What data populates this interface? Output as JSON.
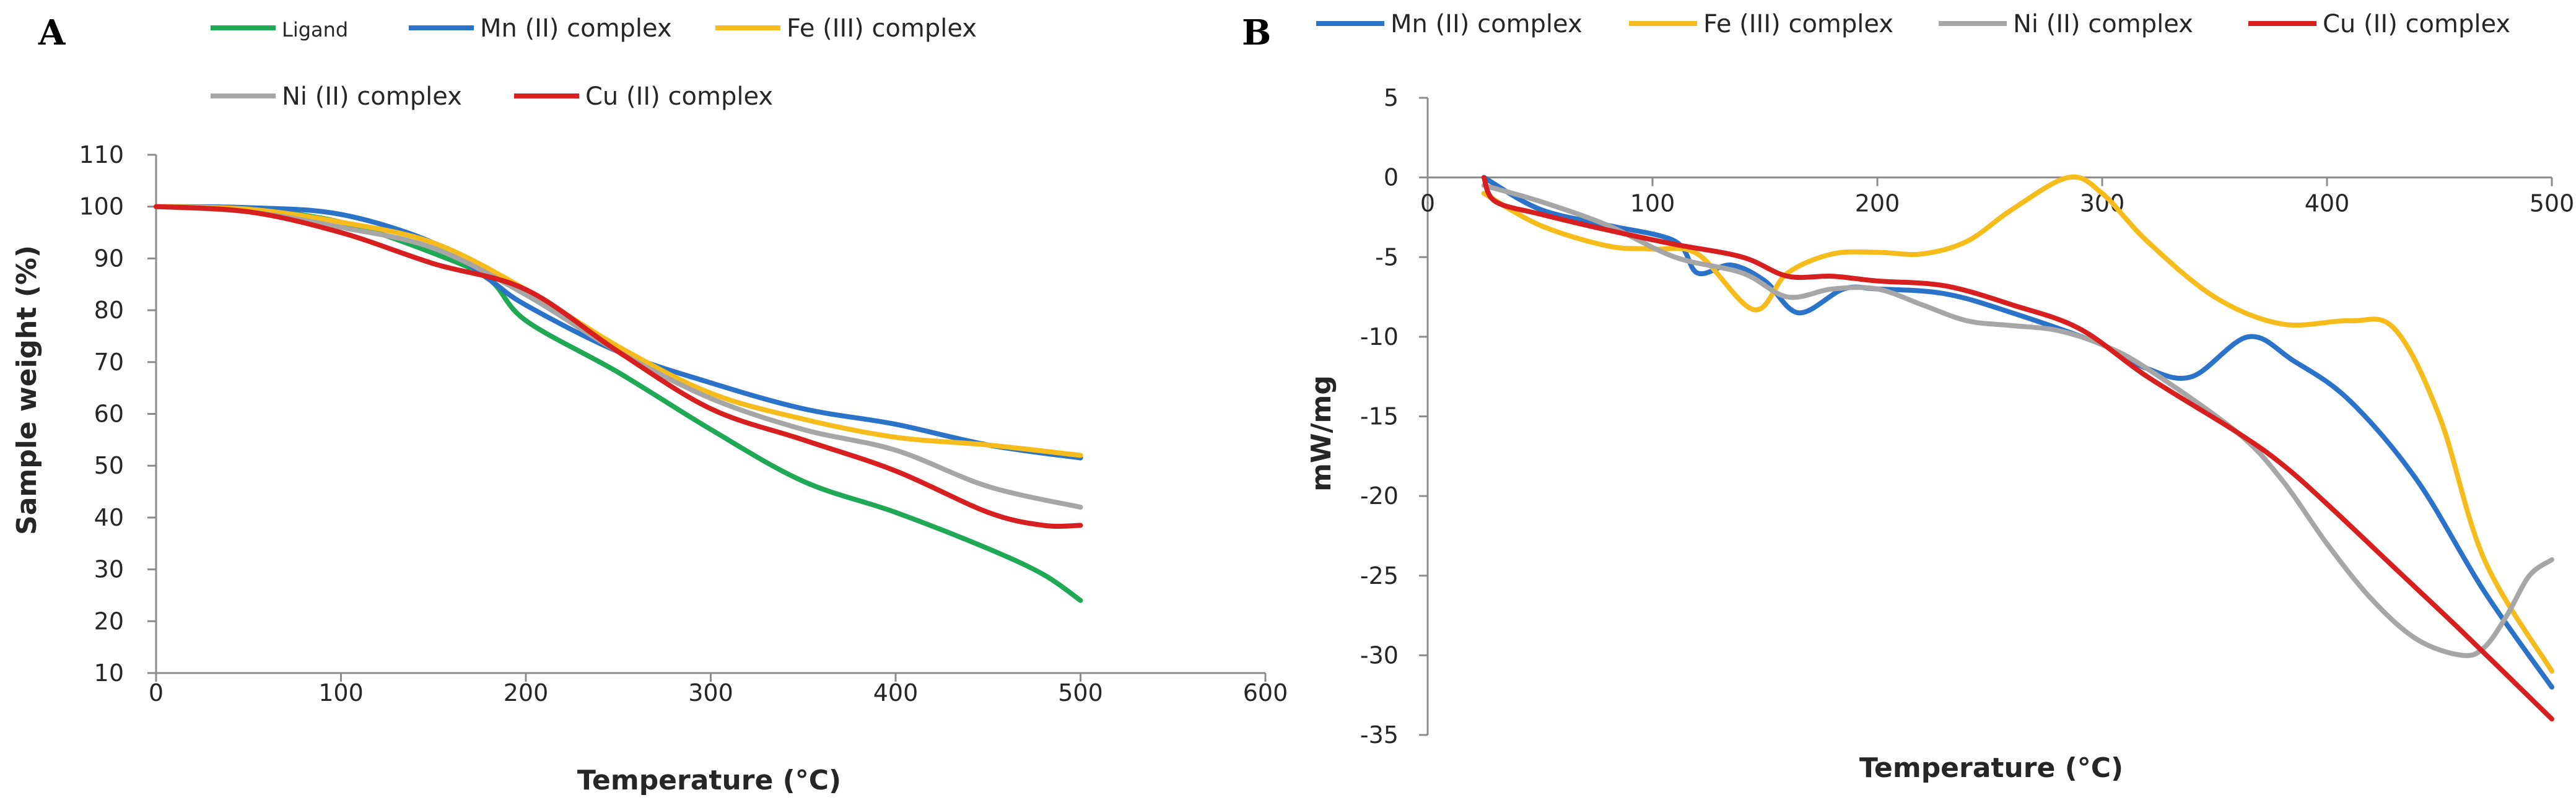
{
  "chart_data": [
    {
      "panel": "A",
      "type": "line",
      "title": "",
      "xlabel": "Temperature (°C)",
      "ylabel": "Sample weight (%)",
      "xlim": [
        0,
        600
      ],
      "ylim": [
        10,
        110
      ],
      "xticks": [
        0,
        100,
        200,
        300,
        400,
        500,
        600
      ],
      "yticks": [
        10,
        20,
        30,
        40,
        50,
        60,
        70,
        80,
        90,
        100,
        110
      ],
      "grid": false,
      "legend": "top",
      "series": [
        {
          "name": "Ligand",
          "color": "#1fa855",
          "x": [
            0,
            50,
            100,
            150,
            180,
            200,
            250,
            300,
            350,
            400,
            450,
            480,
            500
          ],
          "y": [
            100,
            99.5,
            97,
            91,
            86,
            78,
            68,
            57,
            47,
            41,
            34,
            29,
            24
          ]
        },
        {
          "name": "Mn (II) complex",
          "color": "#2b72c9",
          "x": [
            0,
            50,
            100,
            150,
            180,
            200,
            250,
            300,
            350,
            400,
            450,
            500
          ],
          "y": [
            100,
            99.8,
            98.5,
            93,
            86,
            81,
            72,
            66,
            61,
            58,
            54,
            51.5
          ]
        },
        {
          "name": "Fe (III) complex",
          "color": "#f5bc1b",
          "x": [
            0,
            50,
            100,
            150,
            200,
            250,
            300,
            350,
            400,
            450,
            500
          ],
          "y": [
            100,
            99.5,
            97,
            93,
            84,
            73,
            64,
            59,
            55.5,
            54,
            52
          ]
        },
        {
          "name": "Ni (II) complex",
          "color": "#a6a6a6",
          "x": [
            0,
            50,
            100,
            150,
            200,
            250,
            300,
            350,
            400,
            450,
            500
          ],
          "y": [
            100,
            99,
            96,
            92,
            83,
            72,
            63,
            57,
            53,
            46,
            42
          ]
        },
        {
          "name": "Cu (II) complex",
          "color": "#d81f1f",
          "x": [
            0,
            50,
            100,
            150,
            200,
            250,
            300,
            350,
            400,
            450,
            480,
            500
          ],
          "y": [
            100,
            99,
            95,
            89,
            84,
            72,
            61,
            55,
            49,
            41,
            38.5,
            38.5
          ]
        }
      ]
    },
    {
      "panel": "B",
      "type": "line",
      "title": "",
      "xlabel": "Temperature (°C)",
      "ylabel": "mW/mg",
      "xlim": [
        0,
        500
      ],
      "ylim": [
        -35,
        5
      ],
      "xticks": [
        0,
        100,
        200,
        300,
        400,
        500
      ],
      "yticks": [
        5,
        0,
        -5,
        -10,
        -15,
        -20,
        -25,
        -30,
        -35
      ],
      "grid": false,
      "legend": "top",
      "series": [
        {
          "name": "Mn (II) complex",
          "color": "#2b72c9",
          "x": [
            25,
            50,
            80,
            110,
            120,
            135,
            150,
            165,
            185,
            200,
            230,
            260,
            300,
            320,
            340,
            365,
            385,
            410,
            440,
            470,
            500
          ],
          "y": [
            0,
            -2,
            -3,
            -4,
            -6,
            -5.5,
            -6.5,
            -8.5,
            -7,
            -7,
            -7.3,
            -8.5,
            -10.5,
            -12,
            -12.5,
            -10,
            -11.5,
            -14,
            -19,
            -26,
            -32
          ]
        },
        {
          "name": "Fe (III) complex",
          "color": "#f5bc1b",
          "x": [
            25,
            50,
            80,
            100,
            120,
            145,
            160,
            180,
            200,
            220,
            240,
            260,
            285,
            300,
            320,
            350,
            380,
            410,
            430,
            450,
            470,
            500
          ],
          "y": [
            -1,
            -3,
            -4.3,
            -4.5,
            -4.8,
            -8.3,
            -6,
            -4.8,
            -4.7,
            -4.8,
            -4,
            -2,
            0,
            -1,
            -4,
            -7.5,
            -9.2,
            -9,
            -9.5,
            -15,
            -24,
            -31
          ]
        },
        {
          "name": "Ni (II) complex",
          "color": "#a6a6a6",
          "x": [
            25,
            50,
            80,
            110,
            140,
            160,
            180,
            200,
            220,
            240,
            260,
            280,
            300,
            320,
            360,
            380,
            400,
            420,
            440,
            460,
            470,
            480,
            490,
            500
          ],
          "y": [
            -0.5,
            -1.5,
            -3,
            -5,
            -6,
            -7.5,
            -7,
            -7,
            -8,
            -9,
            -9.3,
            -9.6,
            -10.5,
            -12,
            -16,
            -19,
            -23,
            -26.5,
            -29,
            -30,
            -29.5,
            -27.5,
            -25,
            -24
          ]
        },
        {
          "name": "Cu (II) complex",
          "color": "#d81f1f",
          "x": [
            25,
            30,
            50,
            80,
            110,
            140,
            160,
            180,
            200,
            230,
            260,
            290,
            320,
            360,
            380,
            400,
            430,
            460,
            500
          ],
          "y": [
            0,
            -1.5,
            -2.3,
            -3.3,
            -4.2,
            -5,
            -6.2,
            -6.2,
            -6.5,
            -6.8,
            -8,
            -9.5,
            -12.5,
            -16,
            -18,
            -20.5,
            -24.5,
            -28.5,
            -34
          ]
        }
      ]
    }
  ]
}
